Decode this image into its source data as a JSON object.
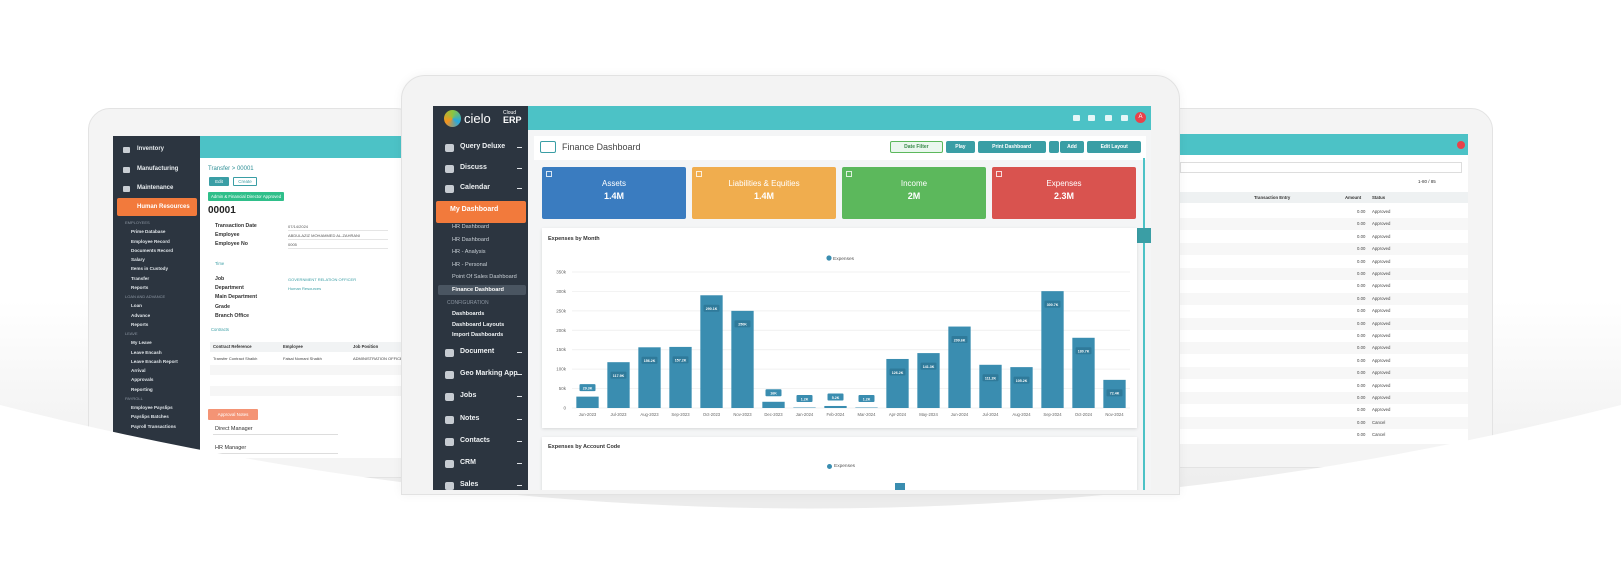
{
  "chart_data": {
    "type": "bar",
    "title": "Expenses by Month",
    "categories": [
      "Jun-2023",
      "Jul-2023",
      "Aug-2023",
      "Sep-2023",
      "Oct-2023",
      "Nov-2023",
      "Dec-2023",
      "Jan-2024",
      "Feb-2024",
      "Mar-2024",
      "Apr-2024",
      "May-2024",
      "Jun-2024",
      "Jul-2024",
      "Aug-2024",
      "Sep-2024",
      "Oct-2024",
      "Nov-2024"
    ],
    "series": [
      {
        "name": "Expenses",
        "color": "#3a8db0",
        "values": [
          29300,
          117900,
          156200,
          157200,
          290100,
          250000,
          16000,
          1200,
          5200,
          1200,
          126200,
          141300,
          209600,
          111200,
          105200,
          300700,
          180700,
          72400
        ],
        "value_labels": [
          "29.3K",
          "117.9K",
          "156.2K",
          "157.2K",
          "290.1K",
          "250K",
          "16K",
          "1.2K",
          "5.2K",
          "1.2K",
          "126.2K",
          "141.3K",
          "209.6K",
          "111.2K",
          "105.2K",
          "300.7K",
          "180.7K",
          "72.4K"
        ]
      }
    ],
    "ylim": [
      0,
      350000
    ],
    "yticks": [
      0,
      {
        "value": 50000,
        "label": "50k"
      },
      {
        "value": 100000,
        "label": "100k"
      },
      {
        "value": 150000,
        "label": "150k"
      },
      {
        "value": 200000,
        "label": "200k"
      },
      {
        "value": 250000,
        "label": "250k"
      },
      {
        "value": 300000,
        "label": "300k"
      },
      {
        "value": 350000,
        "label": "350k"
      }
    ],
    "grid": true
  },
  "center": {
    "logo": "cielo",
    "logo_cloud": "Cloud",
    "logo_erp": "ERP",
    "avatar": "A",
    "menu_top": [
      "Query Deluxe",
      "Discuss",
      "Calendar"
    ],
    "menu_active": "My Dashboard",
    "submenu": [
      "HR Dashboard",
      "HR Dashboard",
      "HR - Analysis",
      "HR - Personal",
      "Point Of Sales Dashboard"
    ],
    "submenu_active": "Finance Dashboard",
    "config_heading": "CONFIGURATION",
    "config_items": [
      "Dashboards",
      "Dashboard Layouts",
      "Import Dashboards"
    ],
    "menu_bottom": [
      "Document",
      "Geo Marking App",
      "Jobs",
      "Notes",
      "Contacts",
      "CRM",
      "Sales"
    ],
    "page_title": "Finance Dashboard",
    "buttons": [
      "Date Filter",
      "Play",
      "Print Dashboard",
      "Add",
      "Edit Layout"
    ],
    "cards": [
      {
        "title": "Assets",
        "value": "1.4M",
        "color": "#3a7cc0"
      },
      {
        "title": "Liabilities & Equities",
        "value": "1.4M",
        "color": "#f0ad4e"
      },
      {
        "title": "Income",
        "value": "2M",
        "color": "#5cb85c"
      },
      {
        "title": "Expenses",
        "value": "2.3M",
        "color": "#d9534f"
      }
    ],
    "second_chart": {
      "title": "Expenses by Account Code",
      "legend": "Expenses"
    }
  },
  "left": {
    "menu": [
      "Inventory",
      "Manufacturing",
      "Maintenance"
    ],
    "menu_active": "Human Resources",
    "submenu": [
      "EMPLOYEES",
      "Prime Database",
      "Employee Record",
      "Documents Record",
      "Salary",
      "Items in Custody",
      "Transfer",
      "Reports",
      "LOAN AND ADVANCE",
      "Loan",
      "Advance",
      "Reports",
      "LEAVE",
      "My Leave",
      "Leave Encash",
      "Leave Encash Report",
      "Arrival",
      "Approvals",
      "Reporting",
      "PAYROLL",
      "Employee Payslips",
      "Payslips Batches",
      "Payroll Transactions"
    ],
    "breadcrumb": "Transfer > 00001",
    "buttons": [
      "Edit",
      "Create"
    ],
    "status": "Admin & Financial Director Approved",
    "record": "00001",
    "fields": [
      [
        "Transaction Date",
        "07/14/2024"
      ],
      [
        "Employee",
        "ABDULAZIZ MOHAMMED AL-ZAHRANI"
      ],
      [
        "Employee No",
        "0005"
      ]
    ],
    "tab": "Time",
    "fields2": [
      "Job",
      "Department",
      "Main Department",
      "Grade",
      "Branch Office"
    ],
    "fields2_values": [
      "GOVERNMENT RELATION OFFICER",
      "Human Resources"
    ],
    "contacts_tab": "Contracts",
    "table_head": [
      "Contract Reference",
      "Employee",
      "Job Position"
    ],
    "table_row": [
      "Transfer Contract Shaikh",
      "Faisal Nomani Shaikh",
      "ADMINISTRATION OFFICER"
    ],
    "approval": "Approval Notes",
    "approvers": [
      "Direct Manager",
      "HR Manager"
    ]
  },
  "right": {
    "pager": "1-80 / 85",
    "columns": [
      "Transaction Entry",
      "Amount",
      "Status"
    ],
    "rows": [
      {
        "amount": "0.00",
        "status": "Approved"
      },
      {
        "amount": "0.00",
        "status": "Approved"
      },
      {
        "amount": "0.00",
        "status": "Approved"
      },
      {
        "amount": "0.00",
        "status": "Approved"
      },
      {
        "amount": "0.00",
        "status": "Approved"
      },
      {
        "amount": "0.00",
        "status": "Approved"
      },
      {
        "amount": "0.00",
        "status": "Approved"
      },
      {
        "amount": "0.00",
        "status": "Approved"
      },
      {
        "amount": "0.00",
        "status": "Approved"
      },
      {
        "amount": "0.00",
        "status": "Approved"
      },
      {
        "amount": "0.00",
        "status": "Approved"
      },
      {
        "amount": "0.00",
        "status": "Approved"
      },
      {
        "amount": "0.00",
        "status": "Approved"
      },
      {
        "amount": "0.00",
        "status": "Approved"
      },
      {
        "amount": "0.00",
        "status": "Approved"
      },
      {
        "amount": "0.00",
        "status": "Approved"
      },
      {
        "amount": "0.00",
        "status": "Approved"
      },
      {
        "amount": "0.00",
        "status": "Cancel"
      },
      {
        "amount": "0.00",
        "status": "Cancel"
      }
    ]
  }
}
